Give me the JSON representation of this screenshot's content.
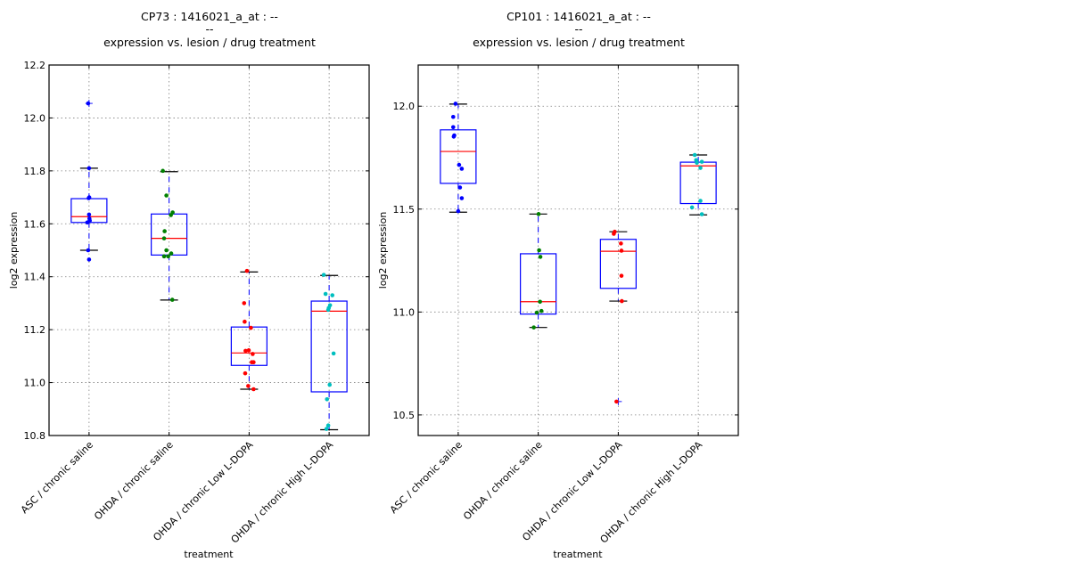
{
  "chart_data": [
    {
      "type": "box",
      "title_lines": [
        "CP73 : 1416021_a_at : --",
        "--",
        "expression vs. lesion / drug treatment"
      ],
      "xlabel": "treatment",
      "ylabel": "log2 expression",
      "ylim": [
        10.8,
        12.2
      ],
      "yticks": [
        10.8,
        11.0,
        11.2,
        11.4,
        11.6,
        11.8,
        12.0,
        12.2
      ],
      "ytick_labels": [
        "10.8",
        "11.0",
        "11.2",
        "11.4",
        "11.6",
        "11.8",
        "12.0",
        "12.2"
      ],
      "grid": true,
      "categories": [
        "ASC / chronic saline",
        "OHDA / chronic saline",
        "OHDA / chronic Low L-DOPA",
        "OHDA / chronic High L-DOPA"
      ],
      "boxes": [
        {
          "q1": 11.605,
          "median": 11.627,
          "q3": 11.695,
          "whisker_low": 11.5,
          "whisker_high": 11.81,
          "outliers": [
            12.055
          ],
          "color": "#0000ff",
          "points": [
            [
              -0.05,
              12.055
            ],
            [
              0,
              11.81
            ],
            [
              -0.02,
              11.697
            ],
            [
              0.01,
              11.7
            ],
            [
              0,
              11.635
            ],
            [
              0.02,
              11.62
            ],
            [
              0.04,
              11.612
            ],
            [
              -0.1,
              11.605
            ],
            [
              -0.05,
              11.5
            ],
            [
              0,
              11.465
            ],
            [
              0.02,
              11.61
            ]
          ]
        },
        {
          "q1": 11.482,
          "median": 11.545,
          "q3": 11.637,
          "whisker_low": 11.312,
          "whisker_high": 11.797,
          "outliers": [],
          "color": "#008000",
          "points": [
            [
              -0.35,
              11.8
            ],
            [
              -0.15,
              11.707
            ],
            [
              0.1,
              11.633
            ],
            [
              0.2,
              11.643
            ],
            [
              -0.25,
              11.572
            ],
            [
              -0.28,
              11.545
            ],
            [
              -0.15,
              11.5
            ],
            [
              0.12,
              11.488
            ],
            [
              -0.28,
              11.477
            ],
            [
              -0.05,
              11.477
            ],
            [
              0.18,
              11.313
            ]
          ]
        },
        {
          "q1": 11.065,
          "median": 11.112,
          "q3": 11.21,
          "whisker_low": 10.975,
          "whisker_high": 11.418,
          "outliers": [],
          "color": "#ff0000",
          "points": [
            [
              -0.12,
              11.422
            ],
            [
              -0.28,
              11.3
            ],
            [
              -0.25,
              11.23
            ],
            [
              0.1,
              11.207
            ],
            [
              -0.2,
              11.12
            ],
            [
              -0.02,
              11.122
            ],
            [
              0.2,
              11.108
            ],
            [
              0.15,
              11.077
            ],
            [
              0.25,
              11.077
            ],
            [
              -0.22,
              11.035
            ],
            [
              -0.05,
              10.987
            ],
            [
              0.25,
              10.975
            ]
          ]
        },
        {
          "q1": 10.965,
          "median": 11.27,
          "q3": 11.308,
          "whisker_low": 10.822,
          "whisker_high": 11.405,
          "outliers": [],
          "color": "#00bfbf",
          "points": [
            [
              -0.3,
              11.407
            ],
            [
              -0.2,
              11.335
            ],
            [
              0.18,
              11.33
            ],
            [
              0.05,
              11.292
            ],
            [
              -0.02,
              11.282
            ],
            [
              -0.05,
              11.275
            ],
            [
              0.25,
              11.11
            ],
            [
              0.03,
              10.992
            ],
            [
              -0.12,
              10.937
            ],
            [
              -0.05,
              10.838
            ],
            [
              -0.15,
              10.825
            ]
          ]
        }
      ]
    },
    {
      "type": "box",
      "title_lines": [
        "CP101 : 1416021_a_at : --",
        "--",
        "expression vs. lesion / drug treatment"
      ],
      "xlabel": "treatment",
      "ylabel": "log2 expression",
      "ylim": [
        10.4,
        12.2
      ],
      "yticks": [
        10.5,
        11.0,
        11.5,
        12.0
      ],
      "ytick_labels": [
        "10.5",
        "11.0",
        "11.5",
        "12.0"
      ],
      "grid": true,
      "categories": [
        "ASC / chronic saline",
        "OHDA / chronic saline",
        "OHDA / chronic Low L-DOPA",
        "OHDA / chronic High L-DOPA"
      ],
      "boxes": [
        {
          "q1": 11.625,
          "median": 11.78,
          "q3": 11.885,
          "whisker_low": 11.485,
          "whisker_high": 12.01,
          "outliers": [],
          "color": "#0000ff",
          "points": [
            [
              -0.15,
              12.012
            ],
            [
              -0.28,
              11.948
            ],
            [
              -0.28,
              11.898
            ],
            [
              -0.22,
              11.858
            ],
            [
              -0.25,
              11.852
            ],
            [
              0.05,
              11.715
            ],
            [
              0.2,
              11.696
            ],
            [
              0.1,
              11.605
            ],
            [
              0.2,
              11.553
            ],
            [
              0,
              11.49
            ]
          ]
        },
        {
          "q1": 10.99,
          "median": 11.05,
          "q3": 11.283,
          "whisker_low": 10.925,
          "whisker_high": 11.476,
          "outliers": [],
          "color": "#008000",
          "points": [
            [
              0.02,
              11.476
            ],
            [
              0.05,
              11.3
            ],
            [
              0.12,
              11.268
            ],
            [
              0.1,
              11.05
            ],
            [
              -0.08,
              10.997
            ],
            [
              0.18,
              11.005
            ],
            [
              -0.25,
              10.925
            ]
          ]
        },
        {
          "q1": 11.115,
          "median": 11.295,
          "q3": 11.353,
          "whisker_low": 11.053,
          "whisker_high": 11.39,
          "outliers": [
            10.565
          ],
          "color": "#ff0000",
          "points": [
            [
              -0.2,
              11.39
            ],
            [
              -0.25,
              11.38
            ],
            [
              0.15,
              11.333
            ],
            [
              0.18,
              11.298
            ],
            [
              0.18,
              11.176
            ],
            [
              0.2,
              11.053
            ],
            [
              -0.1,
              10.565
            ]
          ]
        },
        {
          "q1": 11.527,
          "median": 11.71,
          "q3": 11.728,
          "whisker_low": 11.472,
          "whisker_high": 11.763,
          "outliers": [],
          "color": "#00bfbf",
          "points": [
            [
              -0.2,
              11.763
            ],
            [
              -0.12,
              11.738
            ],
            [
              -0.08,
              11.725
            ],
            [
              0.2,
              11.73
            ],
            [
              0.12,
              11.7
            ],
            [
              0.12,
              11.54
            ],
            [
              -0.35,
              11.508
            ],
            [
              0.2,
              11.475
            ]
          ]
        }
      ]
    }
  ]
}
